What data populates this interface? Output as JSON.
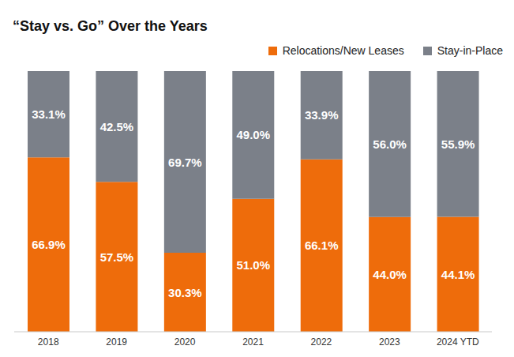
{
  "chart_data": {
    "type": "bar",
    "title": "“Stay vs. Go” Over the Years",
    "categories": [
      "2018",
      "2019",
      "2020",
      "2021",
      "2022",
      "2023",
      "2024 YTD"
    ],
    "series": [
      {
        "name": "Relocations/New Leases",
        "color": "#ee6c0b",
        "values": [
          66.9,
          57.5,
          30.3,
          51.0,
          66.1,
          44.0,
          44.1
        ],
        "value_labels": [
          "66.9%",
          "57.5%",
          "30.3%",
          "51.0%",
          "66.1%",
          "44.0%",
          "44.1%"
        ]
      },
      {
        "name": "Stay-in-Place",
        "color": "#7b8089",
        "values": [
          33.1,
          42.5,
          69.7,
          49.0,
          33.9,
          56.0,
          55.9
        ],
        "value_labels": [
          "33.1%",
          "42.5%",
          "69.7%",
          "49.0%",
          "33.9%",
          "56.0%",
          "55.9%"
        ]
      }
    ],
    "ylim": [
      0,
      100
    ],
    "stacked": true,
    "data_labels": true,
    "legend": "upper right",
    "tick_labels": "x",
    "grid": false
  }
}
